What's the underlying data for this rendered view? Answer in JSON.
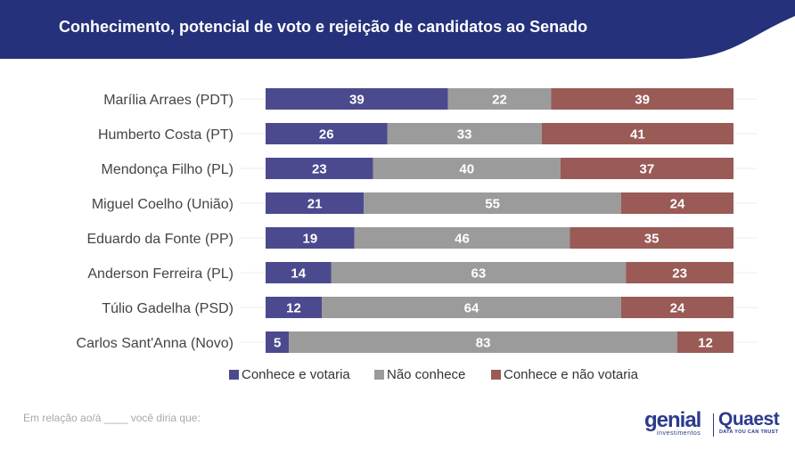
{
  "header": {
    "title": "Conhecimento, potencial de voto e rejeição de candidatos ao Senado",
    "band_color": "#25317a"
  },
  "chart_data": {
    "type": "bar",
    "orientation": "horizontal",
    "stacked": true,
    "categories": [
      "Marília Arraes (PDT)",
      "Humberto Costa (PT)",
      "Mendonça Filho (PL)",
      "Miguel Coelho (União)",
      "Eduardo da Fonte (PP)",
      "Anderson Ferreira (PL)",
      "Túlio Gadelha (PSD)",
      "Carlos Sant'Anna (Novo)"
    ],
    "series": [
      {
        "name": "Conhece e votaria",
        "color": "#4c4a8e",
        "values": [
          39,
          26,
          23,
          21,
          19,
          14,
          12,
          5
        ]
      },
      {
        "name": "Não conhece",
        "color": "#9b9b9b",
        "values": [
          22,
          33,
          40,
          55,
          46,
          63,
          64,
          83
        ]
      },
      {
        "name": "Conhece e não votaria",
        "color": "#9a5a56",
        "values": [
          39,
          41,
          37,
          24,
          35,
          23,
          24,
          12
        ]
      }
    ],
    "xlim": [
      0,
      100
    ],
    "grid": true,
    "legend_position": "bottom"
  },
  "footnote": "Em relação ao/à ____ você diria que:",
  "logos": {
    "genial_word": "genial",
    "genial_sub": "investimentos",
    "quaest_word": "Quaest",
    "quaest_sub": "DATA YOU CAN TRUST",
    "brand_color": "#2b3a8c"
  }
}
